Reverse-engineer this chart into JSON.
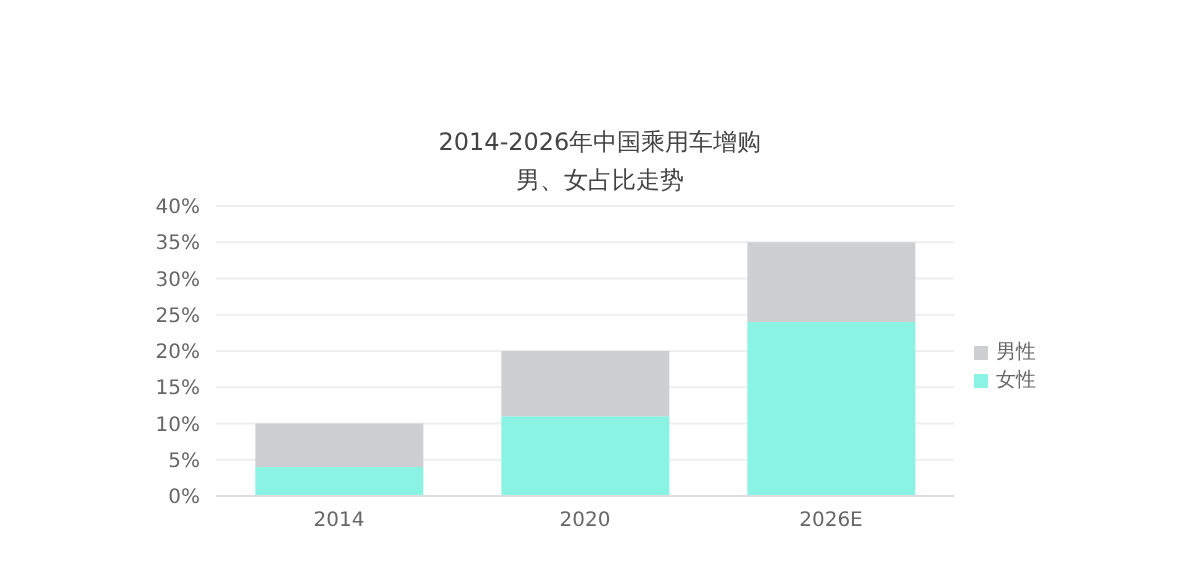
{
  "chart_data": {
    "type": "bar",
    "title": "2014-2026年中国乘用车增购",
    "subtitle": "男、女占比走势",
    "categories": [
      "2014",
      "2020",
      "2026E"
    ],
    "stacked": true,
    "series": [
      {
        "name": "女性",
        "color": "#8af3e3",
        "values": [
          4,
          11,
          24
        ]
      },
      {
        "name": "男性",
        "color": "#cdcfd1",
        "values": [
          6,
          9,
          11
        ]
      }
    ],
    "ylim": [
      0,
      40
    ],
    "yticks": [
      {
        "value": 0,
        "label": "0%"
      },
      {
        "value": 5,
        "label": "5%"
      },
      {
        "value": 10,
        "label": "10%"
      },
      {
        "value": 15,
        "label": "15%"
      },
      {
        "value": 20,
        "label": "20%"
      },
      {
        "value": 25,
        "label": "25%"
      },
      {
        "value": 30,
        "label": "30%"
      },
      {
        "value": 35,
        "label": "35%"
      },
      {
        "value": 40,
        "label": "40%"
      }
    ],
    "grid": "y",
    "legend": "right"
  }
}
